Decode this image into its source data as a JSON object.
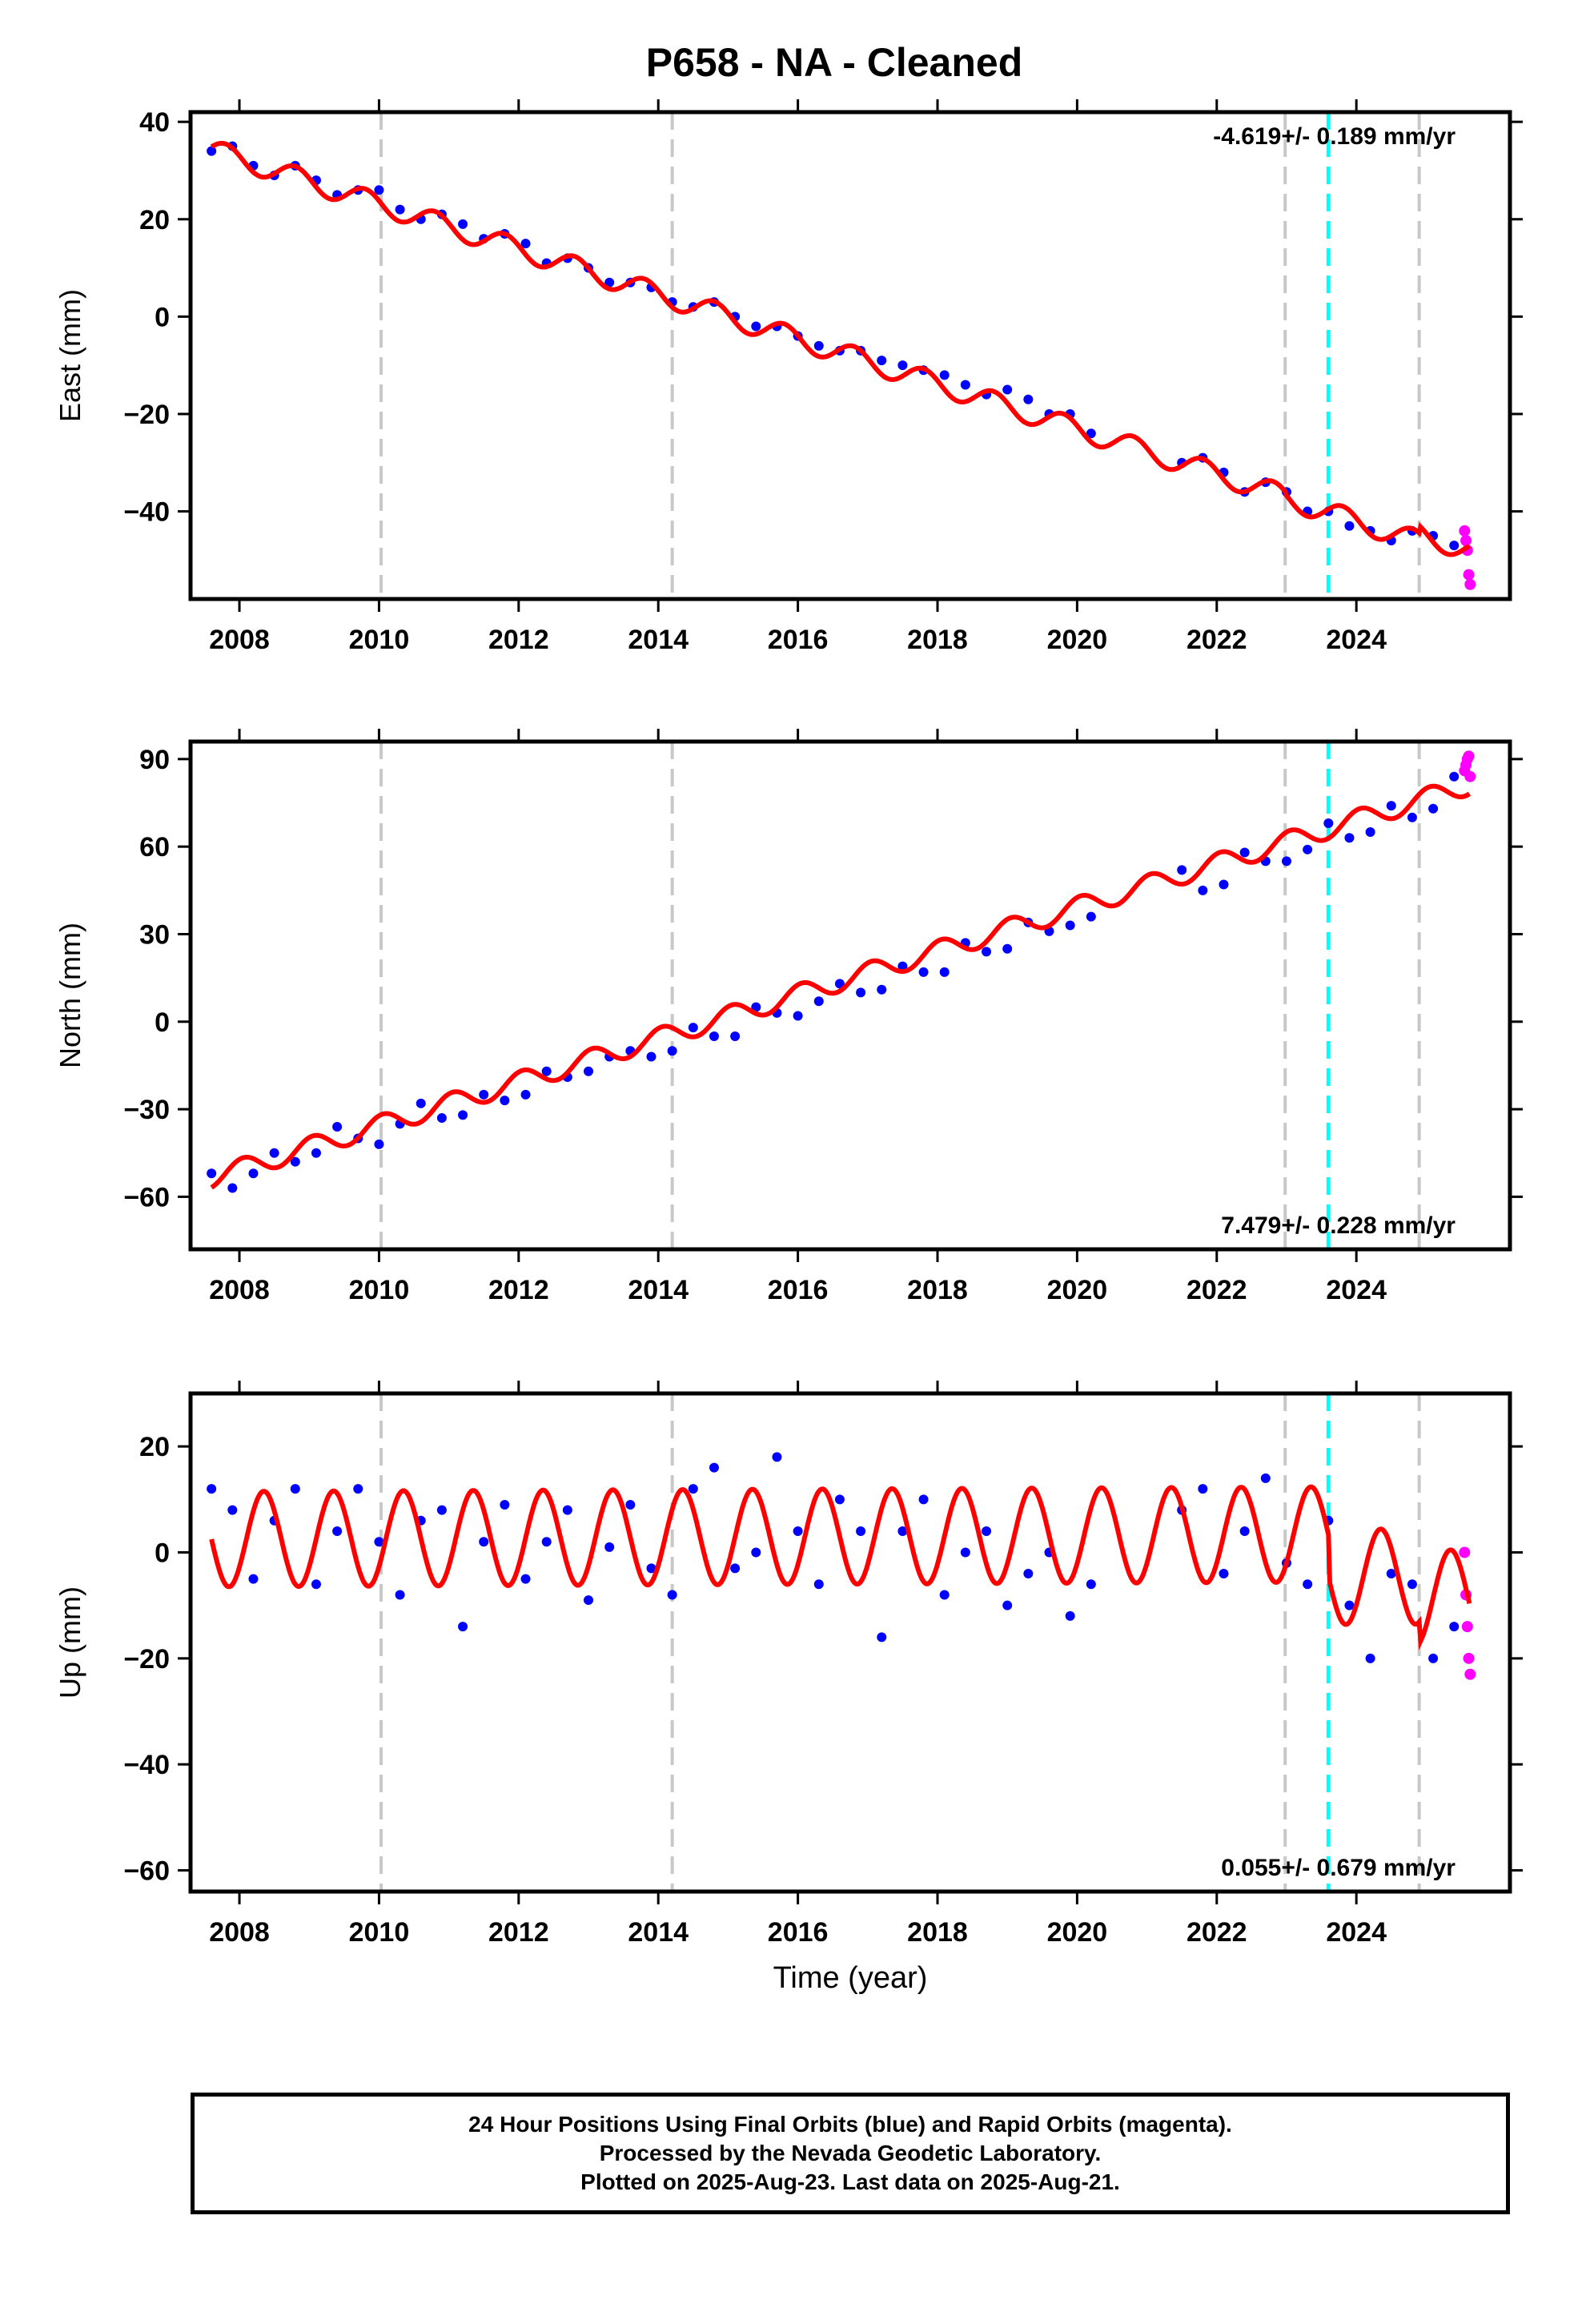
{
  "title": "P658  - NA - Cleaned",
  "colors": {
    "final_points": "#0000ff",
    "rapid_points": "#ff00ff",
    "model_fit": "#ff0000",
    "event_marker": "#c8c8c8",
    "latest_marker": "#00ffff"
  },
  "footer": {
    "line1": "24 Hour Positions Using Final Orbits (blue) and Rapid Orbits (magenta).",
    "line2": "Processed by the Nevada Geodetic Laboratory.",
    "line3": "Plotted on 2025-Aug-23. Last data on 2025-Aug-21."
  },
  "chart_data": [
    {
      "type": "scatter",
      "panel": "east",
      "ylabel": "East (mm)",
      "xlabel": "",
      "xlim": [
        2007.3,
        2026.2
      ],
      "ylim": [
        -58,
        42
      ],
      "yticks": [
        40,
        20,
        0,
        -20,
        -40
      ],
      "xticks": [
        2008,
        2010,
        2012,
        2014,
        2016,
        2018,
        2020,
        2022,
        2024
      ],
      "rate_label": "-4.619+/- 0.189 mm/yr",
      "rate_position": "top-right",
      "event_lines": [
        2010.03,
        2014.2,
        2022.98,
        2024.9
      ],
      "latest_line": 2023.6,
      "series": [
        {
          "name": "Final Orbits",
          "color": "#0000ff",
          "x": [
            2007.6,
            2007.9,
            2008.2,
            2008.5,
            2008.8,
            2009.1,
            2009.4,
            2009.7,
            2010.0,
            2010.3,
            2010.6,
            2010.9,
            2011.2,
            2011.5,
            2011.8,
            2012.1,
            2012.4,
            2012.7,
            2013.0,
            2013.3,
            2013.6,
            2013.9,
            2014.2,
            2014.5,
            2014.8,
            2015.1,
            2015.4,
            2015.7,
            2016.0,
            2016.3,
            2016.6,
            2016.9,
            2017.2,
            2017.5,
            2017.8,
            2018.1,
            2018.4,
            2018.7,
            2019.0,
            2019.3,
            2019.6,
            2019.9,
            2020.2,
            2021.5,
            2021.8,
            2022.1,
            2022.4,
            2022.7,
            2023.0,
            2023.3,
            2023.6,
            2023.9,
            2024.2,
            2024.5,
            2024.8,
            2025.1,
            2025.4
          ],
          "y": [
            34,
            35,
            31,
            29,
            31,
            28,
            25,
            26,
            26,
            22,
            20,
            21,
            19,
            16,
            17,
            15,
            11,
            12,
            10,
            7,
            7,
            6,
            3,
            2,
            3,
            0,
            -2,
            -2,
            -4,
            -6,
            -7,
            -7,
            -9,
            -10,
            -11,
            -12,
            -14,
            -16,
            -15,
            -17,
            -20,
            -20,
            -24,
            -30,
            -29,
            -32,
            -36,
            -34,
            -36,
            -40,
            -40,
            -43,
            -44,
            -46,
            -44,
            -45,
            -47
          ]
        },
        {
          "name": "Rapid Orbits",
          "color": "#ff00ff",
          "x": [
            2025.55,
            2025.57,
            2025.59,
            2025.61,
            2025.63
          ],
          "y": [
            -44,
            -46,
            -48,
            -53,
            -55
          ]
        },
        {
          "name": "Model",
          "color": "#ff0000",
          "model": {
            "t0": 2007.6,
            "y0": 34.2,
            "rate": -4.619,
            "amp": 2.2,
            "phase": 0.55,
            "offsets": [
              {
                "t": 2022.98,
                "dy": -0.5
              },
              {
                "t": 2024.9,
                "dy": 1.5
              }
            ]
          }
        }
      ]
    },
    {
      "type": "scatter",
      "panel": "north",
      "ylabel": "North (mm)",
      "xlabel": "",
      "xlim": [
        2007.3,
        2026.2
      ],
      "ylim": [
        -78,
        96
      ],
      "yticks": [
        90,
        60,
        30,
        0,
        -30,
        -60
      ],
      "xticks": [
        2008,
        2010,
        2012,
        2014,
        2016,
        2018,
        2020,
        2022,
        2024
      ],
      "rate_label": "7.479+/- 0.228 mm/yr",
      "rate_position": "bottom-right",
      "event_lines": [
        2010.03,
        2014.2,
        2022.98,
        2024.9
      ],
      "latest_line": 2023.6,
      "series": [
        {
          "name": "Final Orbits",
          "color": "#0000ff",
          "x": [
            2007.6,
            2007.9,
            2008.2,
            2008.5,
            2008.8,
            2009.1,
            2009.4,
            2009.7,
            2010.0,
            2010.3,
            2010.6,
            2010.9,
            2011.2,
            2011.5,
            2011.8,
            2012.1,
            2012.4,
            2012.7,
            2013.0,
            2013.3,
            2013.6,
            2013.9,
            2014.2,
            2014.5,
            2014.8,
            2015.1,
            2015.4,
            2015.7,
            2016.0,
            2016.3,
            2016.6,
            2016.9,
            2017.2,
            2017.5,
            2017.8,
            2018.1,
            2018.4,
            2018.7,
            2019.0,
            2019.3,
            2019.6,
            2019.9,
            2020.2,
            2021.5,
            2021.8,
            2022.1,
            2022.4,
            2022.7,
            2023.0,
            2023.3,
            2023.6,
            2023.9,
            2024.2,
            2024.5,
            2024.8,
            2025.1,
            2025.4
          ],
          "y": [
            -52,
            -57,
            -52,
            -45,
            -48,
            -45,
            -36,
            -40,
            -42,
            -35,
            -28,
            -33,
            -32,
            -25,
            -27,
            -25,
            -17,
            -19,
            -17,
            -12,
            -10,
            -12,
            -10,
            -2,
            -5,
            -5,
            5,
            3,
            2,
            7,
            13,
            10,
            11,
            19,
            17,
            17,
            27,
            24,
            25,
            34,
            31,
            33,
            36,
            52,
            45,
            47,
            58,
            55,
            55,
            59,
            68,
            63,
            65,
            74,
            70,
            73,
            84
          ]
        },
        {
          "name": "Rapid Orbits",
          "color": "#ff00ff",
          "x": [
            2025.55,
            2025.57,
            2025.59,
            2025.61,
            2025.63
          ],
          "y": [
            86,
            88,
            90,
            91,
            84
          ]
        },
        {
          "name": "Model",
          "color": "#ff0000",
          "model": {
            "t0": 2007.6,
            "y0": -53.5,
            "rate": 7.479,
            "amp": 3.5,
            "phase": 0.8,
            "offsets": []
          }
        }
      ]
    },
    {
      "type": "scatter",
      "panel": "up",
      "ylabel": "Up (mm)",
      "xlabel": "Time (year)",
      "xlim": [
        2007.3,
        2026.2
      ],
      "ylim": [
        -64,
        30
      ],
      "yticks": [
        20,
        0,
        -20,
        -40,
        -60
      ],
      "xticks": [
        2008,
        2010,
        2012,
        2014,
        2016,
        2018,
        2020,
        2022,
        2024
      ],
      "rate_label": "0.055+/- 0.679 mm/yr",
      "rate_position": "bottom-right",
      "event_lines": [
        2010.03,
        2014.2,
        2022.98,
        2024.9
      ],
      "latest_line": 2023.6,
      "series": [
        {
          "name": "Final Orbits",
          "color": "#0000ff",
          "x": [
            2007.6,
            2007.9,
            2008.2,
            2008.5,
            2008.8,
            2009.1,
            2009.4,
            2009.7,
            2010.0,
            2010.3,
            2010.6,
            2010.9,
            2011.2,
            2011.5,
            2011.8,
            2012.1,
            2012.4,
            2012.7,
            2013.0,
            2013.3,
            2013.6,
            2013.9,
            2014.2,
            2014.5,
            2014.8,
            2015.1,
            2015.4,
            2015.7,
            2016.0,
            2016.3,
            2016.6,
            2016.9,
            2017.2,
            2017.5,
            2017.8,
            2018.1,
            2018.4,
            2018.7,
            2019.0,
            2019.3,
            2019.6,
            2019.9,
            2020.2,
            2021.5,
            2021.8,
            2022.1,
            2022.4,
            2022.7,
            2023.0,
            2023.3,
            2023.6,
            2023.9,
            2024.2,
            2024.5,
            2024.8,
            2025.1,
            2025.4
          ],
          "y": [
            12,
            8,
            -5,
            6,
            12,
            -6,
            4,
            12,
            2,
            -8,
            6,
            8,
            -14,
            2,
            9,
            -5,
            2,
            8,
            -9,
            1,
            9,
            -3,
            -8,
            12,
            16,
            -3,
            0,
            18,
            4,
            -6,
            10,
            4,
            -16,
            4,
            10,
            -8,
            0,
            4,
            -10,
            -4,
            0,
            -12,
            -6,
            8,
            12,
            -4,
            4,
            14,
            -2,
            -6,
            6,
            -10,
            -20,
            -4,
            -6,
            -20,
            -14
          ]
        },
        {
          "name": "Rapid Orbits",
          "color": "#ff00ff",
          "x": [
            2025.55,
            2025.57,
            2025.59,
            2025.61,
            2025.63
          ],
          "y": [
            0,
            -8,
            -14,
            -20,
            -23
          ]
        },
        {
          "name": "Model",
          "color": "#ff0000",
          "model": {
            "t0": 2007.6,
            "y0": 2.5,
            "rate": 0.055,
            "amp": 9.0,
            "phase": 0.1,
            "offsets": [
              {
                "t": 2023.6,
                "dy": -8.0
              },
              {
                "t": 2024.9,
                "dy": -4.0
              }
            ]
          }
        }
      ]
    }
  ]
}
